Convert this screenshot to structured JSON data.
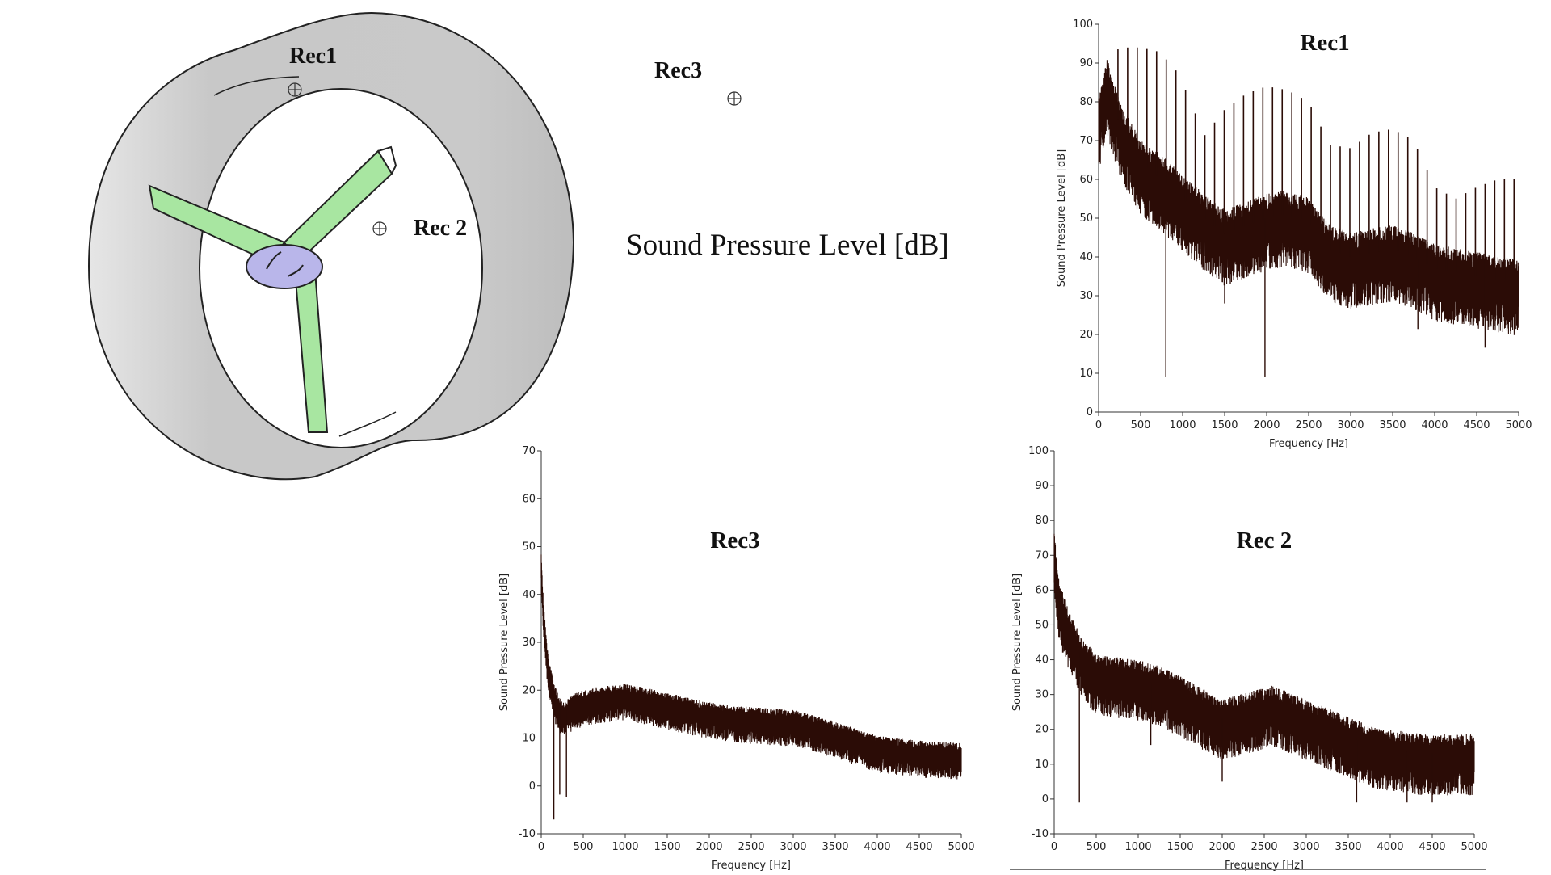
{
  "figure": {
    "main_title": "Sound Pressure Level [dB]",
    "receiver_labels": {
      "rec1": "Rec1",
      "rec2": "Rec 2",
      "rec3": "Rec3"
    },
    "colors": {
      "duct": "#c8c8c8",
      "blades": "#a8e6a1",
      "hub": "#b9b6ea",
      "signal": "#2b0c06"
    }
  },
  "chart_data": [
    {
      "id": "rec1",
      "type": "line",
      "title": "Rec1",
      "xlabel": "Frequency [Hz]",
      "ylabel": "Sound Pressure Level [dB]",
      "xlim": [
        0,
        5000
      ],
      "ylim": [
        0,
        100
      ],
      "xticks": [
        0,
        500,
        1000,
        1500,
        2000,
        2500,
        3000,
        3500,
        4000,
        4500,
        5000
      ],
      "yticks": [
        0,
        10,
        20,
        30,
        40,
        50,
        60,
        70,
        80,
        90,
        100
      ],
      "grid": false,
      "series": [
        {
          "envelope_x": [
            0,
            100,
            250,
            500,
            750,
            1000,
            1250,
            1500,
            1750,
            2000,
            2250,
            2500,
            2750,
            3000,
            3250,
            3500,
            3750,
            4000,
            4250,
            4500,
            4750,
            5000
          ],
          "envelope_y": [
            75,
            85,
            74,
            64,
            60,
            55,
            50,
            46,
            48,
            50,
            51,
            49,
            42,
            40,
            41,
            42,
            40,
            37,
            36,
            35,
            34,
            33
          ],
          "peak_spacing_hz": 115,
          "peaks_x": [
            0,
            150,
            300,
            500,
            700,
            900,
            1100,
            1250,
            1500,
            1750,
            2000,
            2250,
            2500,
            2750,
            3000,
            3250,
            3500,
            3750,
            4000,
            4250,
            4500,
            4750,
            5000
          ],
          "peaks_y": [
            80,
            93,
            94,
            94,
            93,
            89,
            80,
            71,
            78,
            82,
            84,
            83,
            80,
            69,
            68,
            72,
            73,
            70,
            58,
            55,
            58,
            60,
            60
          ],
          "min_value": 9
        }
      ]
    },
    {
      "id": "rec3",
      "type": "line",
      "title": "Rec3",
      "xlabel": "Frequency [Hz]",
      "ylabel": "Sound Pressure Level [dB]",
      "xlim": [
        0,
        5000
      ],
      "ylim": [
        -10,
        70
      ],
      "xticks": [
        0,
        500,
        1000,
        1500,
        2000,
        2500,
        3000,
        3500,
        4000,
        4500,
        5000
      ],
      "yticks": [
        -10,
        0,
        10,
        20,
        30,
        40,
        50,
        60,
        70
      ],
      "grid": false,
      "series": [
        {
          "envelope_x": [
            0,
            30,
            80,
            150,
            250,
            400,
            600,
            1000,
            1500,
            2000,
            2500,
            3000,
            3500,
            4000,
            4500,
            5000
          ],
          "envelope_y": [
            46,
            35,
            25,
            19,
            15,
            17,
            18,
            19,
            17,
            15,
            14,
            13.5,
            11,
            8,
            7,
            6.5
          ],
          "min_value": -7
        }
      ]
    },
    {
      "id": "rec2",
      "type": "line",
      "title": "Rec 2",
      "xlabel": "Frequency [Hz]",
      "ylabel": "Sound Pressure Level [dB]",
      "xlim": [
        0,
        5000
      ],
      "ylim": [
        -10,
        100
      ],
      "xticks": [
        0,
        500,
        1000,
        1500,
        2000,
        2500,
        3000,
        3500,
        4000,
        4500,
        5000
      ],
      "yticks": [
        -10,
        0,
        10,
        20,
        30,
        40,
        50,
        60,
        70,
        80,
        90,
        100
      ],
      "grid": false,
      "series": [
        {
          "envelope_x": [
            0,
            50,
            150,
            300,
            500,
            800,
            1100,
            1400,
            1700,
            2000,
            2300,
            2600,
            2900,
            3200,
            3500,
            3800,
            4100,
            4400,
            4700,
            5000
          ],
          "envelope_y": [
            72,
            58,
            50,
            42,
            36,
            35,
            34,
            31,
            27,
            23,
            25,
            27,
            24,
            21,
            18,
            15,
            14,
            13,
            13,
            13
          ],
          "min_value": -1
        }
      ]
    }
  ]
}
